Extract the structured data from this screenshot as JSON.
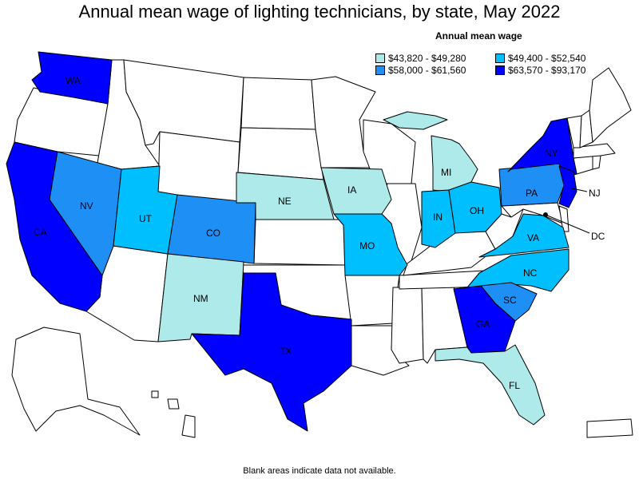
{
  "title": "Annual mean wage of lighting technicians, by state, May 2022",
  "legend": {
    "title": "Annual mean wage",
    "items": [
      {
        "label": "$43,820 - $49,280",
        "color": "#aeeaea"
      },
      {
        "label": "$49,400 - $52,540",
        "color": "#00bfff"
      },
      {
        "label": "$58,000 - $61,560",
        "color": "#1e8ff5"
      },
      {
        "label": "$63,570 - $93,170",
        "color": "#0000ff"
      }
    ]
  },
  "footnote": "Blank areas indicate data not available.",
  "states": {
    "WA": {
      "label": "WA",
      "tier": 3
    },
    "CA": {
      "label": "CA",
      "tier": 3
    },
    "NV": {
      "label": "NV",
      "tier": 2
    },
    "UT": {
      "label": "UT",
      "tier": 1
    },
    "CO": {
      "label": "CO",
      "tier": 2
    },
    "NM": {
      "label": "NM",
      "tier": 0
    },
    "NE": {
      "label": "NE",
      "tier": 0
    },
    "IA": {
      "label": "IA",
      "tier": 0
    },
    "MO": {
      "label": "MO",
      "tier": 1
    },
    "TX": {
      "label": "TX",
      "tier": 3
    },
    "MI": {
      "label": "MI",
      "tier": 0
    },
    "IN": {
      "label": "IN",
      "tier": 1
    },
    "OH": {
      "label": "OH",
      "tier": 1
    },
    "PA": {
      "label": "PA",
      "tier": 2
    },
    "NY": {
      "label": "NY",
      "tier": 3
    },
    "NJ": {
      "label": "NJ",
      "tier": 3
    },
    "DC": {
      "label": "DC",
      "tier": 3
    },
    "VA": {
      "label": "VA",
      "tier": 1
    },
    "NC": {
      "label": "NC",
      "tier": 1
    },
    "SC": {
      "label": "SC",
      "tier": 2
    },
    "GA": {
      "label": "GA",
      "tier": 3
    },
    "FL": {
      "label": "FL",
      "tier": 0
    }
  }
}
